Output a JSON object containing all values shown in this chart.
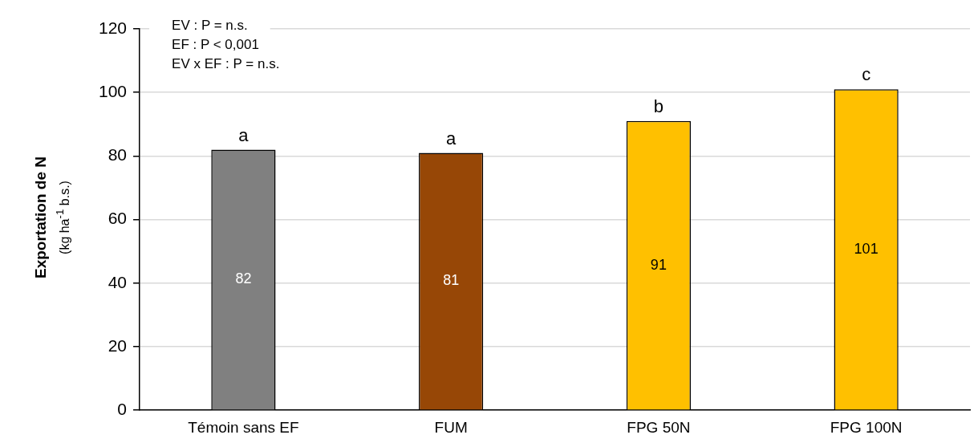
{
  "chart_data": {
    "type": "bar",
    "ylabel": "Exportation de N\n(kg ha$^{-1}$ b.s.)",
    "categories": [
      "Témoin sans EF",
      "FUM",
      "FPG 50N",
      "FPG 100N"
    ],
    "values": [
      82,
      81,
      91,
      101
    ],
    "colors": [
      "#808080",
      "#974706",
      "#ffc000",
      "#ffc000"
    ],
    "ylim": [
      0,
      120
    ],
    "yticks": [
      0,
      20,
      40,
      60,
      80,
      100,
      120
    ],
    "grid": "y",
    "data_labels": true,
    "legend": false,
    "annotations": [
      {
        "text": "a",
        "x": "Témoin sans EF",
        "y": 82
      },
      {
        "text": "a",
        "x": "FUM",
        "y": 81
      },
      {
        "text": "b",
        "x": "FPG 50N",
        "y": 91
      },
      {
        "text": "c",
        "x": "FPG 100N",
        "y": 101
      },
      "EV : P = n.s.",
      "EF : P < 0,001",
      "EV x EF : P = n.s."
    ]
  }
}
